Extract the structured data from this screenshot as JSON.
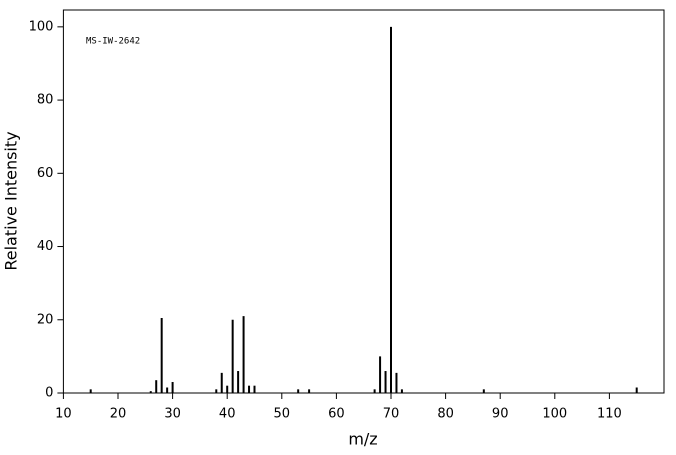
{
  "chart_data": {
    "type": "stem",
    "annotation": "MS-IW-2642",
    "xlabel": "m/z",
    "ylabel": "Relative Intensity",
    "x": [
      15,
      26,
      27,
      28,
      29,
      30,
      38,
      39,
      40,
      41,
      42,
      43,
      44,
      45,
      53,
      55,
      67,
      68,
      69,
      70,
      71,
      72,
      87,
      115
    ],
    "values": [
      1,
      0.5,
      3.5,
      20.5,
      1.5,
      3,
      1,
      5.5,
      2,
      20,
      6,
      21,
      2,
      2,
      1,
      1,
      1,
      10,
      6,
      100,
      5.5,
      1,
      1,
      1.5
    ],
    "color": "#000000",
    "xlim": [
      10,
      120
    ],
    "xticks": [
      10,
      20,
      30,
      40,
      50,
      60,
      70,
      80,
      90,
      100,
      110
    ],
    "ylim": [
      0,
      104.6
    ],
    "yticks": [
      0,
      20,
      40,
      60,
      80,
      100
    ]
  }
}
